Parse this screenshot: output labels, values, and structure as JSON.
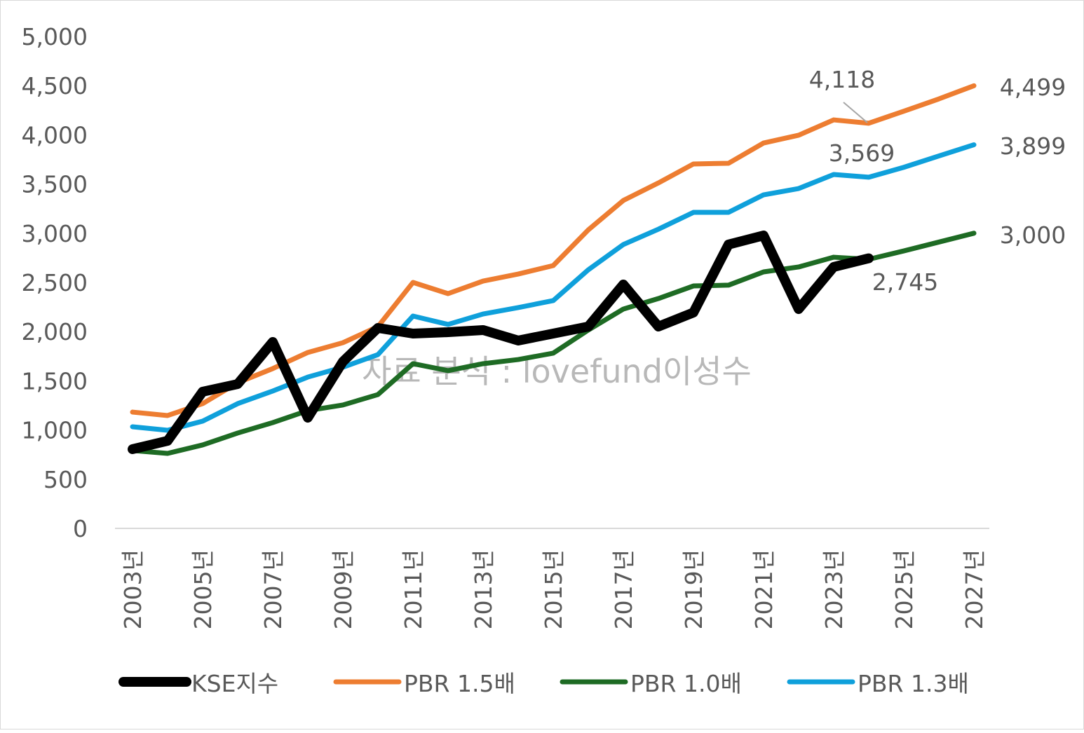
{
  "chart_data": {
    "type": "line",
    "title": "",
    "xlabel": "",
    "ylabel": "",
    "ylim": [
      0,
      5000
    ],
    "y_ticks": [
      "0",
      "500",
      "1,000",
      "1,500",
      "2,000",
      "2,500",
      "3,000",
      "3,500",
      "4,000",
      "4,500",
      "5,000"
    ],
    "y_tick_values": [
      0,
      500,
      1000,
      1500,
      2000,
      2500,
      3000,
      3500,
      4000,
      4500,
      5000
    ],
    "x": [
      2003,
      2004,
      2005,
      2006,
      2007,
      2008,
      2009,
      2010,
      2011,
      2012,
      2013,
      2014,
      2015,
      2016,
      2017,
      2018,
      2019,
      2020,
      2021,
      2022,
      2023,
      2024,
      2025,
      2026,
      2027
    ],
    "x_tick_labels": [
      "2003년",
      "2005년",
      "2007년",
      "2009년",
      "2011년",
      "2013년",
      "2015년",
      "2017년",
      "2019년",
      "2021년",
      "2023년",
      "2025년",
      "2027년"
    ],
    "x_tick_years": [
      2003,
      2005,
      2007,
      2009,
      2011,
      2013,
      2015,
      2017,
      2019,
      2021,
      2023,
      2025,
      2027
    ],
    "grid": false,
    "legend_position": "bottom",
    "series": [
      {
        "name": "KSE지수",
        "color": "#000000",
        "values": [
          805,
          890,
          1389,
          1467,
          1895,
          1125,
          1695,
          2037,
          1980,
          1994,
          2016,
          1909,
          1980,
          2051,
          2479,
          2051,
          2194,
          2885,
          2977,
          2229,
          2657,
          2745,
          null,
          null,
          null
        ]
      },
      {
        "name": "PBR 1.5배",
        "color": "#ED7D31",
        "values": [
          1182,
          1147,
          1268,
          1481,
          1624,
          1788,
          1887,
          2051,
          2500,
          2386,
          2514,
          2585,
          2671,
          3034,
          3333,
          3511,
          3704,
          3711,
          3917,
          3996,
          4152,
          4118,
          4240,
          4365,
          4499
        ]
      },
      {
        "name": "PBR 1.0배",
        "color": "#1E6B24",
        "values": [
          791,
          762,
          848,
          969,
          1075,
          1197,
          1254,
          1360,
          1674,
          1603,
          1674,
          1716,
          1781,
          2016,
          2229,
          2336,
          2464,
          2472,
          2607,
          2657,
          2756,
          2735,
          2820,
          2910,
          3000
        ]
      },
      {
        "name": "PBR 1.3배",
        "color": "#0FA0DB",
        "values": [
          1033,
          997,
          1090,
          1268,
          1396,
          1538,
          1638,
          1766,
          2158,
          2073,
          2179,
          2244,
          2315,
          2628,
          2885,
          3041,
          3212,
          3212,
          3390,
          3454,
          3597,
          3569,
          3670,
          3785,
          3899
        ]
      }
    ],
    "annotations": [
      {
        "text": "4,118",
        "series": 1,
        "year": 2024
      },
      {
        "text": "3,569",
        "series": 3,
        "year": 2024
      },
      {
        "text": "2,745",
        "series": 0,
        "year": 2024
      },
      {
        "text": "4,499",
        "series": 1,
        "year": 2027
      },
      {
        "text": "3,899",
        "series": 3,
        "year": 2027
      },
      {
        "text": "3,000",
        "series": 2,
        "year": 2027
      }
    ],
    "watermark": "자료 분석 : lovefund이성수"
  }
}
